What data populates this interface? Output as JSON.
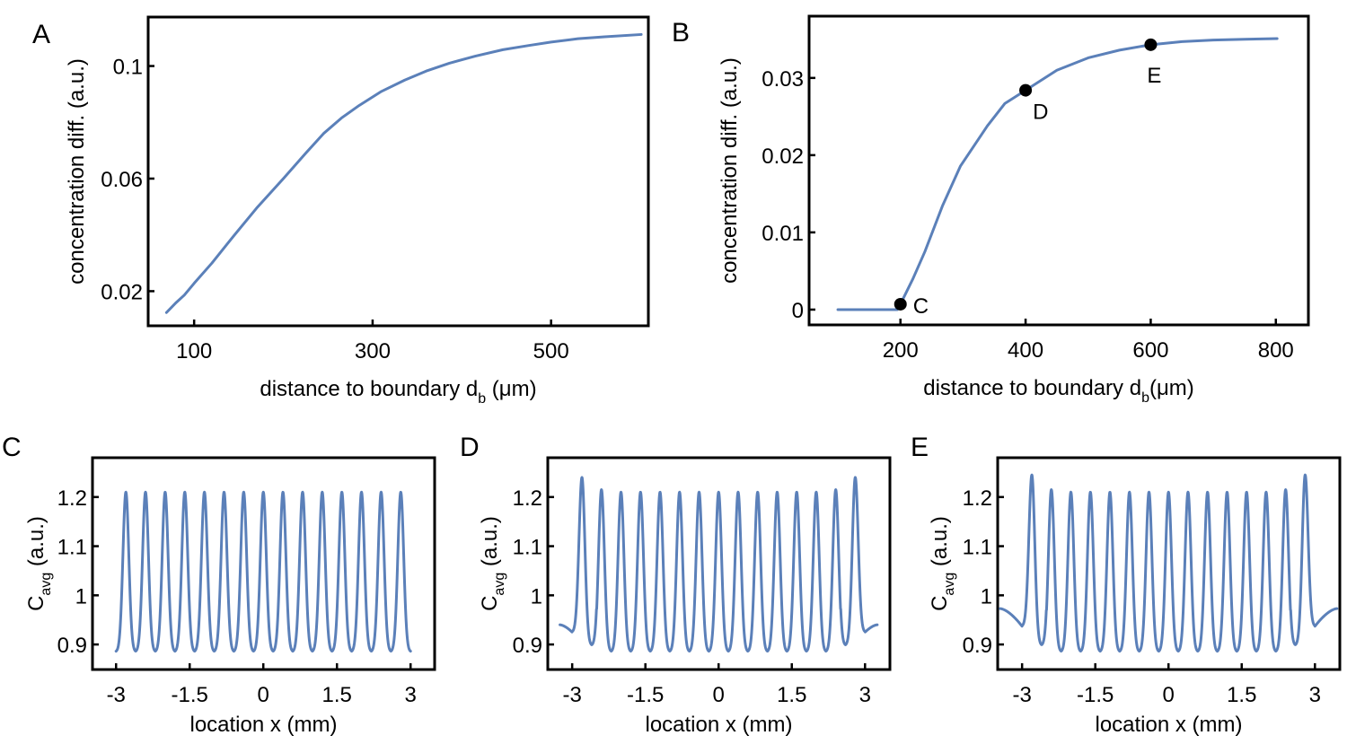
{
  "figure": {
    "line_color": "#5B80B9",
    "axis_color": "#000000"
  },
  "chart_data": [
    {
      "id": "A",
      "panel_label": "A",
      "type": "line",
      "xlabel": "distance to boundary d",
      "xlabel_sub": "b",
      "xlabel_suffix": " (μm)",
      "ylabel": "concentration diff. (a.u.)",
      "xlim": [
        48.5,
        609
      ],
      "ylim": [
        0.0077,
        0.1174
      ],
      "xticks": [
        100,
        300,
        500
      ],
      "xtick_labels": [
        "100",
        "300",
        "500"
      ],
      "yticks": [
        0.02,
        0.06,
        0.1
      ],
      "ytick_labels": [
        "0.02",
        "0.06",
        "0.1"
      ],
      "grid": false,
      "series": [
        {
          "name": "concentration diff.",
          "x": [
            69,
            80,
            89,
            100,
            120,
            144,
            170,
            200,
            225,
            245,
            265,
            285,
            310,
            336,
            360,
            386,
            415,
            446,
            475,
            500,
            530,
            560,
            601
          ],
          "y": [
            0.0124,
            0.016,
            0.0186,
            0.0228,
            0.03,
            0.0395,
            0.0495,
            0.06,
            0.069,
            0.076,
            0.0815,
            0.086,
            0.091,
            0.095,
            0.0982,
            0.101,
            0.1035,
            0.1058,
            0.1073,
            0.1085,
            0.1097,
            0.1104,
            0.1112
          ]
        }
      ]
    },
    {
      "id": "B",
      "panel_label": "B",
      "type": "line",
      "xlabel": "distance to boundary d",
      "xlabel_sub": "b",
      "xlabel_suffix": "(μm)",
      "ylabel": "concentration diff. (a.u.)",
      "xlim": [
        54,
        852
      ],
      "ylim": [
        -0.00198,
        0.038
      ],
      "xticks": [
        200,
        400,
        600,
        800
      ],
      "xtick_labels": [
        "200",
        "400",
        "600",
        "800"
      ],
      "yticks": [
        0,
        0.01,
        0.02,
        0.03
      ],
      "ytick_labels": [
        "0",
        "0.01",
        "0.02",
        "0.03"
      ],
      "grid": false,
      "series": [
        {
          "name": "concentration diff.",
          "x": [
            100,
            150,
            195,
            200,
            220,
            239,
            267,
            296,
            339,
            367,
            400,
            450,
            500,
            550,
            600,
            650,
            700,
            750,
            802
          ],
          "y": [
            0,
            0,
            0,
            0.0007,
            0.004,
            0.0075,
            0.0134,
            0.0186,
            0.0238,
            0.0267,
            0.0284,
            0.031,
            0.0326,
            0.0336,
            0.0343,
            0.0347,
            0.0349,
            0.035,
            0.0351
          ]
        }
      ],
      "markers": [
        {
          "label": "C",
          "x": 200,
          "y": 0.0007
        },
        {
          "label": "D",
          "x": 400,
          "y": 0.0284
        },
        {
          "label": "E",
          "x": 600,
          "y": 0.0343
        }
      ]
    },
    {
      "id": "C",
      "panel_label": "C",
      "type": "line",
      "xlabel": "location x (mm)",
      "ylabel": "C",
      "ylabel_sub": "avg",
      "ylabel_suffix": " (a.u.)",
      "xlim": [
        -3.48,
        3.49
      ],
      "ylim": [
        0.849,
        1.28
      ],
      "xticks": [
        -3,
        -1.5,
        0,
        1.5,
        3
      ],
      "xtick_labels": [
        "-3",
        "-1.5",
        "0",
        "1.5",
        "3"
      ],
      "yticks": [
        0.9,
        1,
        1.1,
        1.2
      ],
      "ytick_labels": [
        "0.9",
        "1",
        "1.1",
        "1.2"
      ],
      "grid": false,
      "series": [
        {
          "name": "C_avg",
          "description": "periodic profile, 15 peaks at x = -2.8 to 2.8 (period 0.4 mm)",
          "x_range": [
            -3,
            3
          ],
          "period": 0.4,
          "peak_positions": [
            -2.8,
            -2.4,
            -2.0,
            -1.6,
            -1.2,
            -0.8,
            -0.4,
            0,
            0.4,
            0.8,
            1.2,
            1.6,
            2.0,
            2.4,
            2.8
          ],
          "peak_values": [
            1.21,
            1.21,
            1.21,
            1.21,
            1.21,
            1.21,
            1.21,
            1.21,
            1.21,
            1.21,
            1.21,
            1.21,
            1.21,
            1.21,
            1.21
          ],
          "trough_value": 0.885,
          "edge_start_value": 0.885,
          "edge_end_value": 0.885
        }
      ]
    },
    {
      "id": "D",
      "panel_label": "D",
      "type": "line",
      "xlabel": "location x (mm)",
      "ylabel": "C",
      "ylabel_sub": "avg",
      "ylabel_suffix": " (a.u.)",
      "xlim": [
        -3.5,
        3.51
      ],
      "ylim": [
        0.849,
        1.28
      ],
      "xticks": [
        -3,
        -1.5,
        0,
        1.5,
        3
      ],
      "xtick_labels": [
        "-3",
        "-1.5",
        "0",
        "1.5",
        "3"
      ],
      "yticks": [
        0.9,
        1,
        1.1,
        1.2
      ],
      "ytick_labels": [
        "0.9",
        "1",
        "1.1",
        "1.2"
      ],
      "grid": false,
      "series": [
        {
          "name": "C_avg",
          "description": "periodic profile with boundary effects, 15 peaks, edge peaks enhanced",
          "x_range": [
            -3.25,
            3.25
          ],
          "period": 0.4,
          "peak_positions": [
            -2.8,
            -2.4,
            -2.0,
            -1.6,
            -1.2,
            -0.8,
            -0.4,
            0,
            0.4,
            0.8,
            1.2,
            1.6,
            2.0,
            2.4,
            2.8
          ],
          "peak_values": [
            1.24,
            1.215,
            1.21,
            1.21,
            1.21,
            1.21,
            1.21,
            1.21,
            1.21,
            1.21,
            1.21,
            1.21,
            1.21,
            1.215,
            1.24
          ],
          "trough_value": 0.885,
          "edge_trough_value": 0.898,
          "edge_start_value": 0.94,
          "edge_dip_value": 0.925,
          "edge_end_value": 0.94
        }
      ]
    },
    {
      "id": "E",
      "panel_label": "E",
      "type": "line",
      "xlabel": "location x (mm)",
      "ylabel": "C",
      "ylabel_sub": "avg",
      "ylabel_suffix": " (a.u.)",
      "xlim": [
        -3.5,
        3.51
      ],
      "ylim": [
        0.849,
        1.28
      ],
      "xticks": [
        -3,
        -1.5,
        0,
        1.5,
        3
      ],
      "xtick_labels": [
        "-3",
        "-1.5",
        "0",
        "1.5",
        "3"
      ],
      "yticks": [
        0.9,
        1,
        1.1,
        1.2
      ],
      "ytick_labels": [
        "0.9",
        "1",
        "1.1",
        "1.2"
      ],
      "grid": false,
      "series": [
        {
          "name": "C_avg",
          "description": "periodic profile with stronger boundary effects, 15 peaks, edge peaks enhanced",
          "x_range": [
            -3.45,
            3.45
          ],
          "period": 0.4,
          "peak_positions": [
            -2.8,
            -2.4,
            -2.0,
            -1.6,
            -1.2,
            -0.8,
            -0.4,
            0,
            0.4,
            0.8,
            1.2,
            1.6,
            2.0,
            2.4,
            2.8
          ],
          "peak_values": [
            1.245,
            1.215,
            1.21,
            1.21,
            1.21,
            1.21,
            1.21,
            1.21,
            1.21,
            1.21,
            1.21,
            1.21,
            1.21,
            1.215,
            1.245
          ],
          "trough_value": 0.885,
          "edge_trough_value": 0.898,
          "edge_start_value": 0.973,
          "edge_dip_value": 0.937,
          "edge_end_value": 0.973
        }
      ]
    }
  ]
}
